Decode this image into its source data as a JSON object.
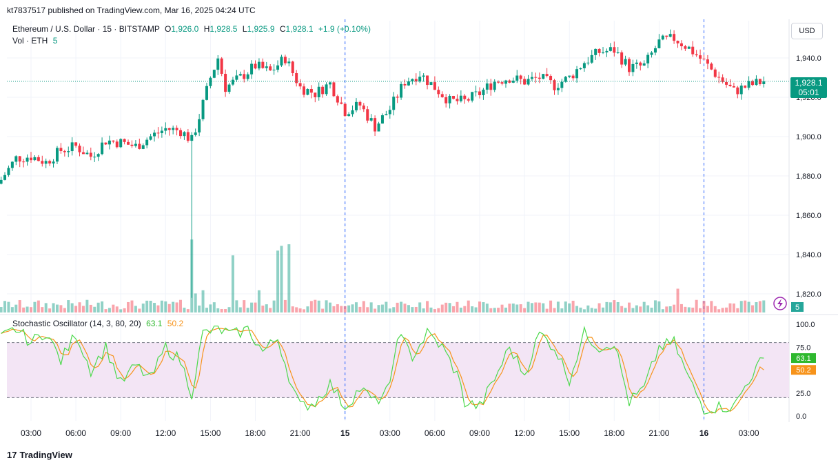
{
  "header": {
    "published": "kt7837517 published on TradingView.com, Mar 16, 2025 04:24 UTC",
    "symbol": "Ethereum / U.S. Dollar · 15 · BITSTAMP",
    "o_label": "O",
    "o_value": "1,926.0",
    "h_label": "H",
    "h_value": "1,928.5",
    "l_label": "L",
    "l_value": "1,925.9",
    "c_label": "C",
    "c_value": "1,928.1",
    "change": "+1.9 (+0.10%)",
    "vol_label": "Vol · ETH",
    "vol_value": "5"
  },
  "price_axis": {
    "currency": "USD",
    "last_price": "1,928.1",
    "countdown": "05:01",
    "volume_badge": "5"
  },
  "stochastic": {
    "title": "Stochastic Oscillator (14, 3, 80, 20)",
    "k_value": "63.1",
    "d_value": "50.2"
  },
  "brand": {
    "name": "TradingView",
    "logo": "17"
  },
  "colors": {
    "up": "#089981",
    "down": "#f23645",
    "k_line": "#4cd94c",
    "d_line": "#f7931a",
    "band": "#f3e5f5"
  },
  "icons": {
    "alert": "lightning-icon",
    "logo": "tradingview-logo-icon"
  },
  "chart_data": {
    "type": "candlestick",
    "interval": "15",
    "ylim": [
      1810,
      1962
    ],
    "y_ticks": [
      "1,820.0",
      "1,840.0",
      "1,860.0",
      "1,880.0",
      "1,900.0",
      "1,920.0",
      "1,940.0"
    ],
    "y_tick_values": [
      1820,
      1840,
      1860,
      1880,
      1900,
      1920,
      1940
    ],
    "x_ticks": [
      "03:00",
      "06:00",
      "09:00",
      "12:00",
      "15:00",
      "18:00",
      "21:00",
      "15",
      "03:00",
      "06:00",
      "09:00",
      "12:00",
      "15:00",
      "18:00",
      "21:00",
      "16",
      "03:00"
    ],
    "x_tick_hours": [
      3,
      6,
      9,
      12,
      15,
      18,
      21,
      24,
      27,
      30,
      33,
      36,
      39,
      42,
      45,
      48,
      51
    ],
    "day_separators_hours": [
      24,
      48
    ],
    "start_hour": 1.0,
    "bar_hours": 0.25,
    "close_anchors": [
      [
        1.0,
        1878
      ],
      [
        2.0,
        1889
      ],
      [
        3.0,
        1890
      ],
      [
        4.0,
        1887
      ],
      [
        5.0,
        1893
      ],
      [
        6.0,
        1895
      ],
      [
        7.0,
        1890
      ],
      [
        8.0,
        1898
      ],
      [
        9.0,
        1897
      ],
      [
        10.0,
        1895
      ],
      [
        11.0,
        1900
      ],
      [
        12.0,
        1904
      ],
      [
        13.0,
        1903
      ],
      [
        13.75,
        1898
      ],
      [
        14.25,
        1910
      ],
      [
        15.0,
        1930
      ],
      [
        15.5,
        1940
      ],
      [
        16.0,
        1925
      ],
      [
        17.0,
        1930
      ],
      [
        18.0,
        1936
      ],
      [
        19.0,
        1933
      ],
      [
        20.0,
        1940
      ],
      [
        21.0,
        1925
      ],
      [
        22.0,
        1922
      ],
      [
        23.0,
        1927
      ],
      [
        24.0,
        1913
      ],
      [
        25.0,
        1916
      ],
      [
        26.0,
        1905
      ],
      [
        27.0,
        1914
      ],
      [
        28.0,
        1928
      ],
      [
        29.0,
        1932
      ],
      [
        30.0,
        1925
      ],
      [
        31.0,
        1918
      ],
      [
        32.0,
        1918
      ],
      [
        33.0,
        1922
      ],
      [
        34.0,
        1928
      ],
      [
        35.0,
        1930
      ],
      [
        36.0,
        1928
      ],
      [
        37.0,
        1930
      ],
      [
        38.0,
        1926
      ],
      [
        39.0,
        1930
      ],
      [
        40.0,
        1938
      ],
      [
        41.0,
        1943
      ],
      [
        42.0,
        1944
      ],
      [
        43.0,
        1935
      ],
      [
        44.0,
        1936
      ],
      [
        45.0,
        1948
      ],
      [
        46.0,
        1950
      ],
      [
        47.0,
        1945
      ],
      [
        48.0,
        1938
      ],
      [
        49.0,
        1930
      ],
      [
        50.0,
        1923
      ],
      [
        51.0,
        1926
      ],
      [
        52.0,
        1928.1
      ]
    ],
    "volume_spikes": [
      [
        13.75,
        46
      ],
      [
        14.0,
        12
      ],
      [
        14.5,
        14
      ],
      [
        16.5,
        36
      ],
      [
        18.25,
        14
      ],
      [
        19.5,
        39
      ],
      [
        19.75,
        42
      ],
      [
        20.25,
        43
      ],
      [
        46.25,
        15
      ]
    ],
    "stochastic_k_anchors": [
      [
        1.0,
        85
      ],
      [
        2.0,
        95
      ],
      [
        3.0,
        80
      ],
      [
        4.0,
        92
      ],
      [
        5.0,
        60
      ],
      [
        6.0,
        90
      ],
      [
        7.0,
        50
      ],
      [
        8.0,
        75
      ],
      [
        9.0,
        35
      ],
      [
        10.0,
        55
      ],
      [
        11.0,
        40
      ],
      [
        12.0,
        75
      ],
      [
        13.0,
        60
      ],
      [
        13.75,
        25
      ],
      [
        14.5,
        90
      ],
      [
        15.5,
        95
      ],
      [
        16.5,
        88
      ],
      [
        17.5,
        95
      ],
      [
        18.5,
        70
      ],
      [
        19.5,
        85
      ],
      [
        20.5,
        30
      ],
      [
        21.0,
        10
      ],
      [
        22.0,
        15
      ],
      [
        23.0,
        35
      ],
      [
        24.0,
        10
      ],
      [
        25.0,
        30
      ],
      [
        26.0,
        15
      ],
      [
        27.0,
        30
      ],
      [
        27.5,
        90
      ],
      [
        28.5,
        65
      ],
      [
        29.5,
        90
      ],
      [
        30.5,
        75
      ],
      [
        31.5,
        45
      ],
      [
        32.0,
        15
      ],
      [
        33.0,
        10
      ],
      [
        34.0,
        40
      ],
      [
        35.0,
        75
      ],
      [
        36.0,
        45
      ],
      [
        37.0,
        90
      ],
      [
        38.0,
        75
      ],
      [
        39.0,
        40
      ],
      [
        40.0,
        90
      ],
      [
        41.0,
        75
      ],
      [
        42.0,
        80
      ],
      [
        43.0,
        15
      ],
      [
        44.0,
        30
      ],
      [
        45.0,
        75
      ],
      [
        46.0,
        80
      ],
      [
        47.0,
        40
      ],
      [
        48.0,
        8
      ],
      [
        49.0,
        10
      ],
      [
        50.0,
        10
      ],
      [
        51.0,
        40
      ],
      [
        52.0,
        63.1
      ]
    ],
    "stochastic_d_value": 50.2,
    "stochastic_bands": [
      80,
      20
    ],
    "stochastic_ticks": [
      "100.0",
      "75.0",
      "25.0",
      "0.0"
    ],
    "stochastic_tick_values": [
      100,
      75,
      25,
      0
    ]
  }
}
